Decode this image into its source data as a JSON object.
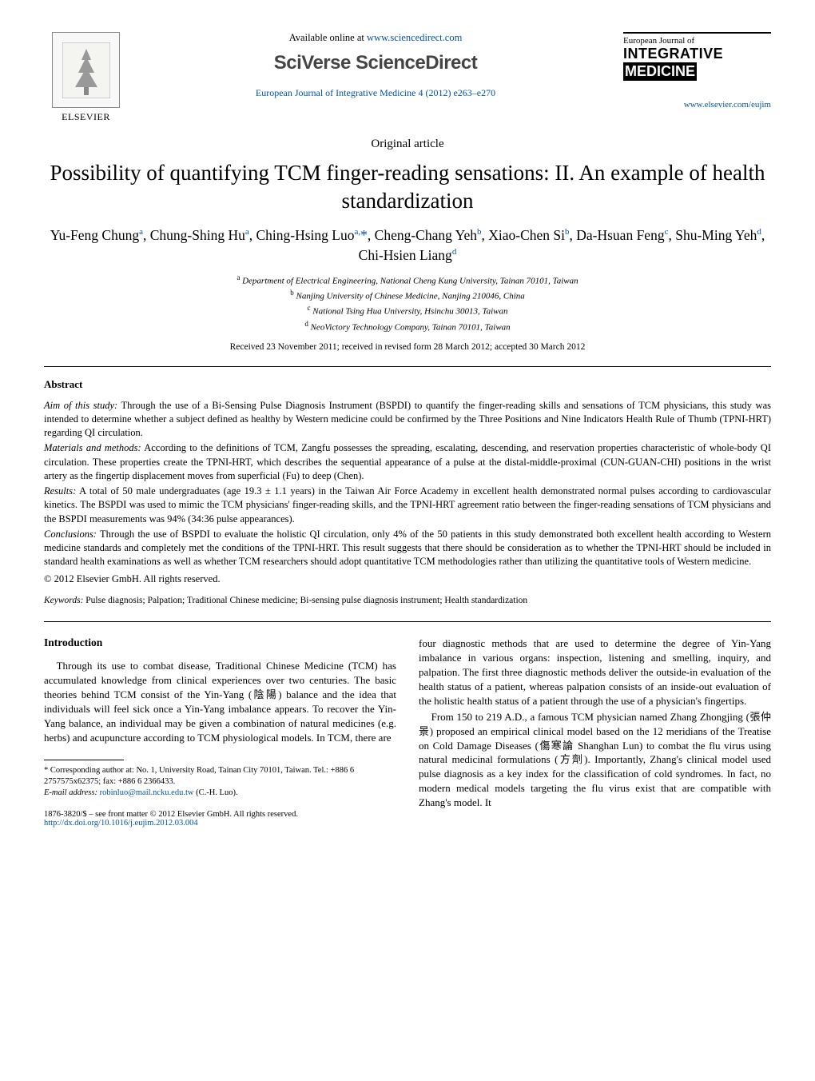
{
  "header": {
    "publisher_logo_alt": "Elsevier tree logo",
    "publisher_name": "ELSEVIER",
    "available_text": "Available online at ",
    "available_url": "www.sciencedirect.com",
    "brand": "SciVerse ScienceDirect",
    "journal_ref": "European Journal of Integrative Medicine 4 (2012) e263–e270",
    "journal_box": {
      "line1": "European Journal of",
      "line2": "INTEGRATIVE",
      "line3": "MEDICINE"
    },
    "journal_url": "www.elsevier.com/eujim"
  },
  "article_type": "Original article",
  "title": "Possibility of quantifying TCM finger-reading sensations: II. An example of health standardization",
  "authors_html": "Yu-Feng Chung<sup>a</sup>, Chung-Shing Hu<sup>a</sup>, Ching-Hsing Luo<sup>a,</sup><span class='star'>*</span>, Cheng-Chang Yeh<sup>b</sup>, Xiao-Chen Si<sup>b</sup>, Da-Hsuan Feng<sup>c</sup>, Shu-Ming Yeh<sup>d</sup>, Chi-Hsien Liang<sup>d</sup>",
  "affiliations": [
    "a|Department of Electrical Engineering, National Cheng Kung University, Tainan 70101, Taiwan",
    "b|Nanjing University of Chinese Medicine, Nanjing 210046, China",
    "c|National Tsing Hua University, Hsinchu 30013, Taiwan",
    "d|NeoVictory Technology Company, Tainan 70101, Taiwan"
  ],
  "dates": "Received 23 November 2011; received in revised form 28 March 2012; accepted 30 March 2012",
  "abstract": {
    "heading": "Abstract",
    "aim_lead": "Aim of this study:",
    "aim": "Through the use of a Bi-Sensing Pulse Diagnosis Instrument (BSPDI) to quantify the finger-reading skills and sensations of TCM physicians, this study was intended to determine whether a subject defined as healthy by Western medicine could be confirmed by the Three Positions and Nine Indicators Health Rule of Thumb (TPNI-HRT) regarding QI circulation.",
    "mm_lead": "Materials and methods:",
    "mm": "According to the definitions of TCM, Zangfu possesses the spreading, escalating, descending, and reservation properties characteristic of whole-body QI circulation. These properties create the TPNI-HRT, which describes the sequential appearance of a pulse at the distal-middle-proximal (CUN-GUAN-CHI) positions in the wrist artery as the fingertip displacement moves from superficial (Fu) to deep (Chen).",
    "results_lead": "Results:",
    "results": "A total of 50 male undergraduates (age 19.3 ± 1.1 years) in the Taiwan Air Force Academy in excellent health demonstrated normal pulses according to cardiovascular kinetics. The BSPDI was used to mimic the TCM physicians' finger-reading skills, and the TPNI-HRT agreement ratio between the finger-reading sensations of TCM physicians and the BSPDI measurements was 94% (34:36 pulse appearances).",
    "concl_lead": "Conclusions:",
    "concl": "Through the use of BSPDI to evaluate the holistic QI circulation, only 4% of the 50 patients in this study demonstrated both excellent health according to Western medicine standards and completely met the conditions of the TPNI-HRT. This result suggests that there should be consideration as to whether the TPNI-HRT should be included in standard health examinations as well as whether TCM researchers should adopt quantitative TCM methodologies rather than utilizing the quantitative tools of Western medicine.",
    "copyright": "© 2012 Elsevier GmbH. All rights reserved."
  },
  "keywords": {
    "label": "Keywords:",
    "text": "Pulse diagnosis; Palpation; Traditional Chinese medicine; Bi-sensing pulse diagnosis instrument; Health standardization"
  },
  "intro": {
    "heading": "Introduction",
    "p1": "Through its use to combat disease, Traditional Chinese Medicine (TCM) has accumulated knowledge from clinical experiences over two centuries. The basic theories behind TCM consist of the Yin-Yang (陰陽) balance and the idea that individuals will feel sick once a Yin-Yang imbalance appears. To recover the Yin-Yang balance, an individual may be given a combination of natural medicines (e.g. herbs) and acupuncture according to TCM physiological models. In TCM, there are",
    "p2": "four diagnostic methods that are used to determine the degree of Yin-Yang imbalance in various organs: inspection, listening and smelling, inquiry, and palpation. The first three diagnostic methods deliver the outside-in evaluation of the health status of a patient, whereas palpation consists of an inside-out evaluation of the holistic health status of a patient through the use of a physician's fingertips.",
    "p3": "From 150 to 219 A.D., a famous TCM physician named Zhang Zhongjing (張仲景) proposed an empirical clinical model based on the 12 meridians of the Treatise on Cold Damage Diseases (傷寒論 Shanghan Lun) to combat the flu virus using natural medicinal formulations (方劑). Importantly, Zhang's clinical model used pulse diagnosis as a key index for the classification of cold syndromes. In fact, no modern medical models targeting the flu virus exist that are compatible with Zhang's model. It"
  },
  "footnotes": {
    "corr": "* Corresponding author at: No. 1, University Road, Tainan City 70101, Taiwan. Tel.: +886 6 2757575x62375; fax: +886 6 2366433.",
    "email_label": "E-mail address:",
    "email": "robinluo@mail.ncku.edu.tw",
    "email_name": "(C.-H. Luo)."
  },
  "issn": "1876-3820/$ – see front matter © 2012 Elsevier GmbH. All rights reserved.",
  "doi": "http://dx.doi.org/10.1016/j.eujim.2012.03.004"
}
